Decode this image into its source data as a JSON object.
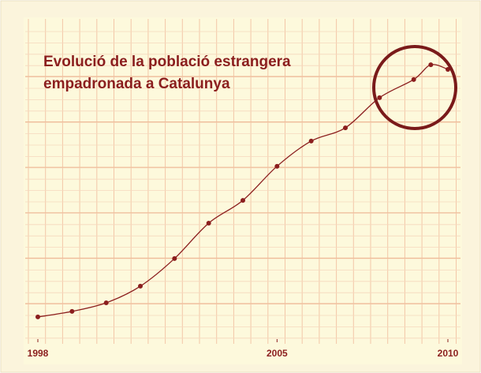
{
  "chart_data": {
    "type": "line",
    "title_lines": [
      "Evolució de la població estrangera",
      "empadronada a Catalunya"
    ],
    "x": [
      1998,
      1999,
      2000,
      2001,
      2002,
      2003,
      2004,
      2005,
      2006,
      2007,
      2008,
      2009,
      2009.5,
      2010
    ],
    "series": [
      {
        "color": "#8b1e1e",
        "values": [
          7.2,
          9.0,
          11.8,
          17.2,
          26.2,
          37.7,
          45.1,
          56.2,
          64.4,
          68.7,
          78.5,
          84.4,
          89.2,
          87.7
        ]
      }
    ],
    "xlim": [
      1998,
      2010
    ],
    "xticks": [
      1998,
      2005,
      2010
    ],
    "ylim": [
      0,
      100
    ],
    "grid": true
  }
}
